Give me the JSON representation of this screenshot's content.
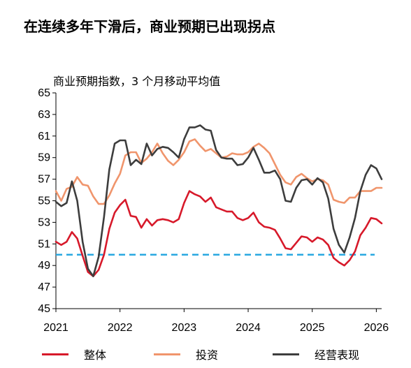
{
  "chart_data": {
    "type": "line",
    "title": "在连续多年下滑后，商业预期已出现拐点",
    "subtitle": "商业预期指数，3 个月移动平均值",
    "xlabel": "",
    "ylabel": "",
    "ylim": [
      45,
      65
    ],
    "xlim": [
      2021.0,
      2026.083
    ],
    "x_ticks": [
      "2021",
      "2022",
      "2023",
      "2024",
      "2025",
      "2026"
    ],
    "y_ticks": [
      45,
      47,
      49,
      51,
      53,
      55,
      57,
      59,
      61,
      63,
      65
    ],
    "grid": false,
    "legend_position": "bottom",
    "reference_line": {
      "y": 50,
      "color": "#29a8e0",
      "style": "dashed"
    },
    "series": [
      {
        "name": "整体",
        "color": "#d7192a",
        "x": [
          2021.0,
          2021.083,
          2021.167,
          2021.25,
          2021.333,
          2021.417,
          2021.5,
          2021.583,
          2021.667,
          2021.75,
          2021.833,
          2021.917,
          2022.0,
          2022.083,
          2022.167,
          2022.25,
          2022.333,
          2022.417,
          2022.5,
          2022.583,
          2022.667,
          2022.75,
          2022.833,
          2022.917,
          2023.0,
          2023.083,
          2023.167,
          2023.25,
          2023.333,
          2023.417,
          2023.5,
          2023.583,
          2023.667,
          2023.75,
          2023.833,
          2023.917,
          2024.0,
          2024.083,
          2024.167,
          2024.25,
          2024.333,
          2024.417,
          2024.5,
          2024.583,
          2024.667,
          2024.75,
          2024.833,
          2024.917,
          2025.0,
          2025.083,
          2025.167,
          2025.25,
          2025.333,
          2025.417,
          2025.5,
          2025.583,
          2025.667,
          2025.75,
          2025.833,
          2025.917,
          2026.0,
          2026.083
        ],
        "values": [
          51.2,
          50.9,
          51.2,
          52.1,
          51.5,
          49.9,
          48.4,
          48.0,
          48.6,
          50.0,
          52.4,
          53.9,
          54.6,
          55.1,
          53.6,
          53.5,
          52.5,
          53.3,
          52.7,
          53.2,
          53.3,
          53.2,
          53.0,
          53.3,
          54.8,
          55.9,
          55.6,
          55.4,
          54.9,
          55.3,
          54.4,
          54.2,
          54.0,
          54.0,
          53.4,
          53.2,
          53.4,
          53.9,
          53.0,
          52.6,
          52.5,
          52.3,
          51.5,
          50.6,
          50.5,
          51.1,
          51.7,
          51.6,
          51.2,
          51.6,
          51.4,
          50.9,
          49.7,
          49.3,
          49.0,
          49.5,
          50.3,
          51.8,
          52.5,
          53.4,
          53.3,
          52.9
        ]
      },
      {
        "name": "投资",
        "color": "#f0956c",
        "x": [
          2021.0,
          2021.083,
          2021.167,
          2021.25,
          2021.333,
          2021.417,
          2021.5,
          2021.583,
          2021.667,
          2021.75,
          2021.833,
          2021.917,
          2022.0,
          2022.083,
          2022.167,
          2022.25,
          2022.333,
          2022.417,
          2022.5,
          2022.583,
          2022.667,
          2022.75,
          2022.833,
          2022.917,
          2023.0,
          2023.083,
          2023.167,
          2023.25,
          2023.333,
          2023.417,
          2023.5,
          2023.583,
          2023.667,
          2023.75,
          2023.833,
          2023.917,
          2024.0,
          2024.083,
          2024.167,
          2024.25,
          2024.333,
          2024.417,
          2024.5,
          2024.583,
          2024.667,
          2024.75,
          2024.833,
          2024.917,
          2025.0,
          2025.083,
          2025.167,
          2025.25,
          2025.333,
          2025.417,
          2025.5,
          2025.583,
          2025.667,
          2025.75,
          2025.833,
          2025.917,
          2026.0,
          2026.083
        ],
        "values": [
          55.9,
          55.0,
          56.1,
          56.3,
          57.2,
          56.5,
          56.4,
          55.4,
          54.7,
          54.7,
          55.5,
          56.6,
          57.5,
          59.2,
          59.5,
          59.5,
          58.5,
          58.9,
          59.5,
          60.3,
          59.4,
          58.7,
          58.3,
          58.8,
          59.5,
          60.5,
          60.7,
          60.1,
          59.6,
          59.8,
          59.4,
          59.0,
          59.1,
          59.4,
          59.3,
          59.3,
          59.5,
          60.0,
          60.3,
          59.9,
          59.4,
          58.4,
          57.4,
          56.7,
          56.5,
          57.2,
          57.5,
          57.1,
          56.8,
          57.0,
          56.9,
          56.5,
          55.1,
          54.9,
          54.8,
          55.3,
          55.3,
          55.9,
          55.9,
          55.9,
          56.2,
          56.2
        ]
      },
      {
        "name": "经营表现",
        "color": "#3d3d3d",
        "x": [
          2021.0,
          2021.083,
          2021.167,
          2021.25,
          2021.333,
          2021.417,
          2021.5,
          2021.583,
          2021.667,
          2021.75,
          2021.833,
          2021.917,
          2022.0,
          2022.083,
          2022.167,
          2022.25,
          2022.333,
          2022.417,
          2022.5,
          2022.583,
          2022.667,
          2022.75,
          2022.833,
          2022.917,
          2023.0,
          2023.083,
          2023.167,
          2023.25,
          2023.333,
          2023.417,
          2023.5,
          2023.583,
          2023.667,
          2023.75,
          2023.833,
          2023.917,
          2024.0,
          2024.083,
          2024.167,
          2024.25,
          2024.333,
          2024.417,
          2024.5,
          2024.583,
          2024.667,
          2024.75,
          2024.833,
          2024.917,
          2025.0,
          2025.083,
          2025.167,
          2025.25,
          2025.333,
          2025.417,
          2025.5,
          2025.583,
          2025.667,
          2025.75,
          2025.833,
          2025.917,
          2026.0,
          2026.083
        ],
        "values": [
          54.9,
          54.5,
          54.8,
          56.8,
          55.0,
          51.2,
          48.7,
          48.0,
          49.8,
          53.5,
          57.9,
          60.3,
          60.6,
          60.6,
          58.3,
          58.8,
          58.4,
          60.3,
          59.2,
          59.8,
          60.0,
          59.9,
          59.5,
          59.0,
          60.7,
          61.8,
          61.8,
          62.0,
          61.6,
          61.5,
          59.7,
          59.0,
          58.9,
          58.9,
          58.3,
          58.4,
          59.0,
          59.9,
          58.8,
          57.6,
          57.6,
          57.8,
          57.0,
          55.0,
          54.9,
          56.2,
          56.9,
          57.0,
          56.5,
          57.1,
          56.7,
          55.2,
          52.4,
          50.9,
          50.2,
          51.6,
          53.4,
          55.9,
          57.4,
          58.3,
          58.0,
          57.0
        ]
      }
    ]
  }
}
